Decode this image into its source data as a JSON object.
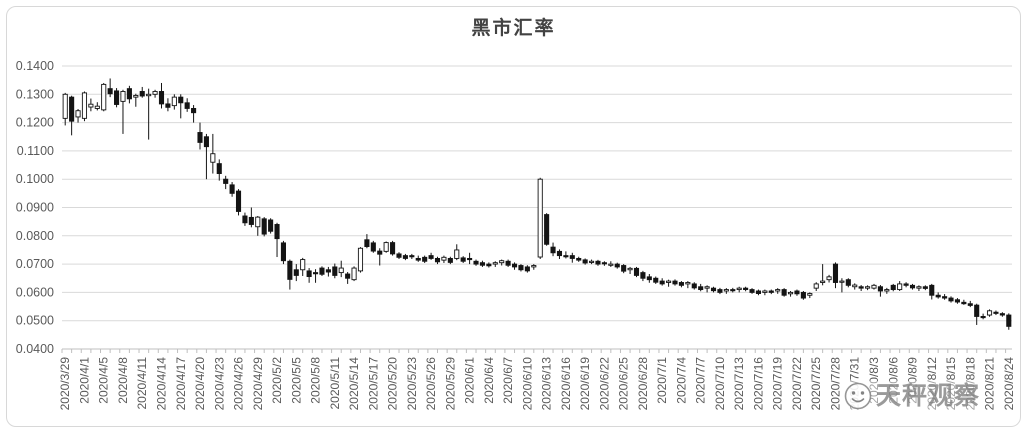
{
  "watermark": {
    "icon": "smiley-face-icon",
    "text": "天秤观察"
  },
  "colors": {
    "up_fill": "#ffffff",
    "down_fill": "#141414",
    "candle_outline": "#141414",
    "gridline": "#d9d9d9",
    "axis_line": "#bfbfbf",
    "axis_text": "#595959",
    "title_text": "#424242"
  },
  "chart_data": {
    "type": "candlestick",
    "title": "黑市汇率",
    "xlabel": "",
    "ylabel": "",
    "ylim": [
      0.04,
      0.14
    ],
    "grid": "horizontal",
    "legend_position": "none",
    "y_tick_labels": [
      "0.1400",
      "0.1300",
      "0.1200",
      "0.1100",
      "0.1000",
      "0.0900",
      "0.0800",
      "0.0700",
      "0.0600",
      "0.0500",
      "0.0400"
    ],
    "x_label_interval": 3,
    "x_labels": [
      "2020/3/29",
      "2020/4/1",
      "2020/4/5",
      "2020/4/8",
      "2020/4/11",
      "2020/4/14",
      "2020/4/17",
      "2020/4/20",
      "2020/4/23",
      "2020/4/26",
      "2020/4/29",
      "2020/5/2",
      "2020/5/5",
      "2020/5/8",
      "2020/5/11",
      "2020/5/14",
      "2020/5/17",
      "2020/5/20",
      "2020/5/23",
      "2020/5/26",
      "2020/5/29",
      "2020/6/1",
      "2020/6/4",
      "2020/6/7",
      "2020/6/10",
      "2020/6/13",
      "2020/6/16",
      "2020/6/19",
      "2020/6/22",
      "2020/6/25",
      "2020/6/28",
      "2020/7/1",
      "2020/7/4",
      "2020/7/7",
      "2020/7/10",
      "2020/7/13",
      "2020/7/16",
      "2020/7/19",
      "2020/7/22",
      "2020/7/25",
      "2020/7/28",
      "2020/7/31",
      "2020/8/3",
      "2020/8/6",
      "2020/8/9",
      "2020/8/12",
      "2020/8/15",
      "2020/8/18",
      "2020/8/21",
      "2020/8/24"
    ],
    "ohlc": [
      [
        0.1215,
        0.1305,
        0.119,
        0.13
      ],
      [
        0.129,
        0.1295,
        0.1155,
        0.1205
      ],
      [
        0.122,
        0.1248,
        0.12,
        0.1242
      ],
      [
        0.1215,
        0.131,
        0.1205,
        0.1305
      ],
      [
        0.1255,
        0.1285,
        0.124,
        0.1265
      ],
      [
        0.125,
        0.1272,
        0.1243,
        0.1258
      ],
      [
        0.1245,
        0.134,
        0.124,
        0.1335
      ],
      [
        0.132,
        0.1356,
        0.129,
        0.1302
      ],
      [
        0.1312,
        0.1322,
        0.1254,
        0.1264
      ],
      [
        0.1275,
        0.1316,
        0.116,
        0.131
      ],
      [
        0.132,
        0.133,
        0.1268,
        0.1284
      ],
      [
        0.129,
        0.1302,
        0.1256,
        0.1296
      ],
      [
        0.131,
        0.1326,
        0.1288,
        0.1294
      ],
      [
        0.1295,
        0.132,
        0.114,
        0.13
      ],
      [
        0.13,
        0.1316,
        0.1288,
        0.131
      ],
      [
        0.131,
        0.134,
        0.125,
        0.1266
      ],
      [
        0.1266,
        0.1286,
        0.124,
        0.1254
      ],
      [
        0.126,
        0.13,
        0.1246,
        0.129
      ],
      [
        0.129,
        0.13,
        0.1215,
        0.127
      ],
      [
        0.127,
        0.1286,
        0.1238,
        0.125
      ],
      [
        0.125,
        0.1262,
        0.12,
        0.1235
      ],
      [
        0.1165,
        0.12,
        0.1105,
        0.113
      ],
      [
        0.115,
        0.116,
        0.1,
        0.1115
      ],
      [
        0.106,
        0.116,
        0.102,
        0.109
      ],
      [
        0.1055,
        0.107,
        0.0995,
        0.102
      ],
      [
        0.1,
        0.1012,
        0.0965,
        0.0985
      ],
      [
        0.098,
        0.099,
        0.0938,
        0.095
      ],
      [
        0.0958,
        0.0965,
        0.0872,
        0.0886
      ],
      [
        0.087,
        0.0882,
        0.0835,
        0.0846
      ],
      [
        0.0865,
        0.09,
        0.083,
        0.084
      ],
      [
        0.0832,
        0.087,
        0.08,
        0.0866
      ],
      [
        0.086,
        0.0866,
        0.0798,
        0.0806
      ],
      [
        0.0856,
        0.0862,
        0.0808,
        0.0816
      ],
      [
        0.084,
        0.0846,
        0.0725,
        0.079
      ],
      [
        0.0775,
        0.0782,
        0.07,
        0.0712
      ],
      [
        0.071,
        0.0716,
        0.061,
        0.0646
      ],
      [
        0.068,
        0.07,
        0.064,
        0.066
      ],
      [
        0.068,
        0.0722,
        0.0658,
        0.0716
      ],
      [
        0.0676,
        0.0686,
        0.0634,
        0.0656
      ],
      [
        0.067,
        0.0682,
        0.0634,
        0.0666
      ],
      [
        0.0686,
        0.0692,
        0.0658,
        0.0664
      ],
      [
        0.068,
        0.069,
        0.0656,
        0.0672
      ],
      [
        0.069,
        0.0702,
        0.065,
        0.066
      ],
      [
        0.067,
        0.0712,
        0.0654,
        0.0686
      ],
      [
        0.0665,
        0.0672,
        0.063,
        0.065
      ],
      [
        0.0645,
        0.0692,
        0.064,
        0.0686
      ],
      [
        0.0676,
        0.076,
        0.067,
        0.0756
      ],
      [
        0.0786,
        0.0806,
        0.0756,
        0.0762
      ],
      [
        0.0775,
        0.0782,
        0.074,
        0.0746
      ],
      [
        0.0746,
        0.0756,
        0.0695,
        0.0735
      ],
      [
        0.0745,
        0.078,
        0.074,
        0.0776
      ],
      [
        0.0776,
        0.0782,
        0.073,
        0.0736
      ],
      [
        0.0736,
        0.0742,
        0.0718,
        0.0724
      ],
      [
        0.073,
        0.0736,
        0.0714,
        0.072
      ],
      [
        0.073,
        0.0736,
        0.0718,
        0.0726
      ],
      [
        0.072,
        0.073,
        0.0708,
        0.0714
      ],
      [
        0.0724,
        0.073,
        0.0704,
        0.071
      ],
      [
        0.073,
        0.074,
        0.0715,
        0.072
      ],
      [
        0.072,
        0.0726,
        0.07,
        0.0708
      ],
      [
        0.0714,
        0.073,
        0.0704,
        0.0724
      ],
      [
        0.072,
        0.0726,
        0.07,
        0.0706
      ],
      [
        0.072,
        0.077,
        0.0714,
        0.075
      ],
      [
        0.0722,
        0.0728,
        0.0704,
        0.071
      ],
      [
        0.072,
        0.074,
        0.07,
        0.0716
      ],
      [
        0.071,
        0.0716,
        0.0694,
        0.07
      ],
      [
        0.0705,
        0.0712,
        0.069,
        0.0696
      ],
      [
        0.07,
        0.0706,
        0.0688,
        0.0694
      ],
      [
        0.07,
        0.071,
        0.069,
        0.0705
      ],
      [
        0.0705,
        0.0716,
        0.0695,
        0.0712
      ],
      [
        0.071,
        0.0716,
        0.069,
        0.0696
      ],
      [
        0.07,
        0.0706,
        0.068,
        0.069
      ],
      [
        0.0695,
        0.07,
        0.0674,
        0.068
      ],
      [
        0.069,
        0.0696,
        0.067,
        0.0676
      ],
      [
        0.069,
        0.07,
        0.068,
        0.0695
      ],
      [
        0.0725,
        0.1005,
        0.0718,
        0.1
      ],
      [
        0.0875,
        0.088,
        0.0765,
        0.077
      ],
      [
        0.076,
        0.0776,
        0.0728,
        0.074
      ],
      [
        0.0745,
        0.0752,
        0.0718,
        0.073
      ],
      [
        0.073,
        0.0745,
        0.072,
        0.0726
      ],
      [
        0.073,
        0.074,
        0.0705,
        0.072
      ],
      [
        0.072,
        0.0726,
        0.0708,
        0.0714
      ],
      [
        0.0715,
        0.072,
        0.0698,
        0.0704
      ],
      [
        0.071,
        0.0716,
        0.07,
        0.071
      ],
      [
        0.071,
        0.0715,
        0.0694,
        0.07
      ],
      [
        0.0705,
        0.071,
        0.0694,
        0.0704
      ],
      [
        0.07,
        0.071,
        0.069,
        0.07
      ],
      [
        0.07,
        0.0705,
        0.0684,
        0.069
      ],
      [
        0.0695,
        0.07,
        0.0668,
        0.0675
      ],
      [
        0.068,
        0.069,
        0.0665,
        0.0685
      ],
      [
        0.0685,
        0.069,
        0.0654,
        0.066
      ],
      [
        0.067,
        0.0676,
        0.064,
        0.065
      ],
      [
        0.0655,
        0.0665,
        0.0634,
        0.0645
      ],
      [
        0.065,
        0.0656,
        0.063,
        0.0636
      ],
      [
        0.064,
        0.065,
        0.0624,
        0.063
      ],
      [
        0.0635,
        0.0645,
        0.062,
        0.064
      ],
      [
        0.064,
        0.0646,
        0.0624,
        0.063
      ],
      [
        0.0635,
        0.064,
        0.0618,
        0.0625
      ],
      [
        0.063,
        0.064,
        0.0615,
        0.0635
      ],
      [
        0.063,
        0.0636,
        0.061,
        0.0616
      ],
      [
        0.062,
        0.063,
        0.0604,
        0.061
      ],
      [
        0.0615,
        0.0625,
        0.06,
        0.062
      ],
      [
        0.0615,
        0.062,
        0.06,
        0.0606
      ],
      [
        0.061,
        0.0616,
        0.0594,
        0.06
      ],
      [
        0.0605,
        0.0615,
        0.0595,
        0.061
      ],
      [
        0.061,
        0.0616,
        0.06,
        0.0606
      ],
      [
        0.061,
        0.062,
        0.06,
        0.0615
      ],
      [
        0.0615,
        0.062,
        0.0604,
        0.061
      ],
      [
        0.061,
        0.0615,
        0.0595,
        0.06
      ],
      [
        0.0605,
        0.061,
        0.059,
        0.0596
      ],
      [
        0.06,
        0.061,
        0.059,
        0.0605
      ],
      [
        0.0605,
        0.061,
        0.0594,
        0.06
      ],
      [
        0.0605,
        0.0615,
        0.0595,
        0.061
      ],
      [
        0.061,
        0.0615,
        0.0585,
        0.059
      ],
      [
        0.0595,
        0.0605,
        0.0585,
        0.06
      ],
      [
        0.0605,
        0.061,
        0.0588,
        0.0595
      ],
      [
        0.06,
        0.0605,
        0.0574,
        0.058
      ],
      [
        0.059,
        0.06,
        0.058,
        0.0596
      ],
      [
        0.0615,
        0.0636,
        0.0605,
        0.063
      ],
      [
        0.0635,
        0.07,
        0.0625,
        0.064
      ],
      [
        0.0645,
        0.0662,
        0.0635,
        0.0655
      ],
      [
        0.07,
        0.0706,
        0.0615,
        0.0635
      ],
      [
        0.064,
        0.065,
        0.06,
        0.064
      ],
      [
        0.0645,
        0.065,
        0.0618,
        0.0625
      ],
      [
        0.062,
        0.0632,
        0.061,
        0.0626
      ],
      [
        0.062,
        0.0626,
        0.0605,
        0.0615
      ],
      [
        0.0615,
        0.0625,
        0.0608,
        0.062
      ],
      [
        0.0615,
        0.063,
        0.061,
        0.0625
      ],
      [
        0.062,
        0.0626,
        0.0585,
        0.0605
      ],
      [
        0.0605,
        0.0616,
        0.0595,
        0.061
      ],
      [
        0.0625,
        0.063,
        0.0604,
        0.061
      ],
      [
        0.061,
        0.064,
        0.0605,
        0.063
      ],
      [
        0.063,
        0.0636,
        0.0618,
        0.0625
      ],
      [
        0.0625,
        0.063,
        0.061,
        0.0616
      ],
      [
        0.0615,
        0.0625,
        0.0605,
        0.062
      ],
      [
        0.062,
        0.0625,
        0.0608,
        0.0614
      ],
      [
        0.0625,
        0.063,
        0.0575,
        0.059
      ],
      [
        0.059,
        0.06,
        0.0578,
        0.0584
      ],
      [
        0.0585,
        0.0594,
        0.0574,
        0.058
      ],
      [
        0.058,
        0.0586,
        0.0564,
        0.057
      ],
      [
        0.0574,
        0.058,
        0.056,
        0.0566
      ],
      [
        0.0565,
        0.0574,
        0.0556,
        0.056
      ],
      [
        0.056,
        0.057,
        0.0548,
        0.0554
      ],
      [
        0.0555,
        0.056,
        0.0485,
        0.0515
      ],
      [
        0.0515,
        0.0525,
        0.0505,
        0.0512
      ],
      [
        0.052,
        0.054,
        0.0514,
        0.0535
      ],
      [
        0.053,
        0.0536,
        0.052,
        0.0526
      ],
      [
        0.0525,
        0.053,
        0.0514,
        0.052
      ],
      [
        0.052,
        0.0526,
        0.0468,
        0.048
      ]
    ]
  }
}
